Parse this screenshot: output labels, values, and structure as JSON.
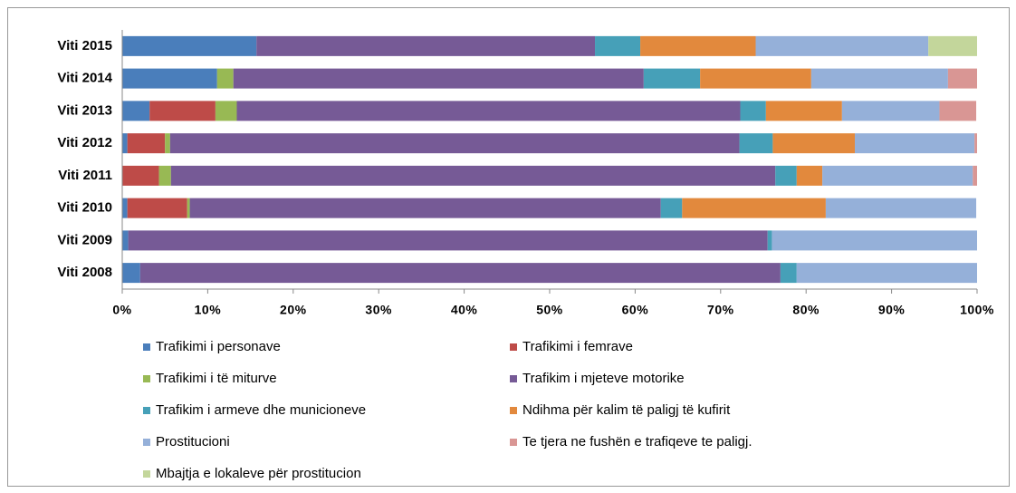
{
  "chart_data": {
    "type": "stacked_barh",
    "categories": [
      "Viti 2015",
      "Viti 2014",
      "Viti 2013",
      "Viti 2012",
      "Viti 2011",
      "Viti 2010",
      "Viti 2009",
      "Viti 2008"
    ],
    "series": [
      {
        "name": "Trafikimi i personave",
        "color": "#4a7ebb",
        "values": [
          15.7,
          11.1,
          3.2,
          0.6,
          0,
          0.6,
          0.7,
          2.1
        ]
      },
      {
        "name": "Trafikimi i femrave",
        "color": "#be4b48",
        "values": [
          0,
          0,
          7.7,
          4.4,
          4.3,
          7.0,
          0,
          0
        ]
      },
      {
        "name": "Trafikimi i të miturve",
        "color": "#98b954",
        "values": [
          0,
          1.9,
          2.5,
          0.6,
          1.4,
          0.3,
          0,
          0
        ]
      },
      {
        "name": "Trafikim i mjeteve motorike",
        "color": "#765a96",
        "values": [
          39.6,
          48.0,
          58.9,
          66.6,
          70.7,
          55.1,
          74.8,
          74.9
        ]
      },
      {
        "name": "Trafikim i armeve dhe municioneve",
        "color": "#46a0b8",
        "values": [
          5.3,
          6.6,
          3.0,
          3.9,
          2.5,
          2.5,
          0.5,
          1.9
        ]
      },
      {
        "name": "Ndihma për kalim  të paligj të kufirit",
        "color": "#e2893d",
        "values": [
          13.5,
          13.0,
          8.9,
          9.6,
          3.0,
          16.8,
          0,
          0
        ]
      },
      {
        "name": "Prostitucioni",
        "color": "#95b0d9",
        "values": [
          20.2,
          16.0,
          11.4,
          14.0,
          17.6,
          17.6,
          24.0,
          21.1
        ]
      },
      {
        "name": "Te tjera  ne fushën e trafiqeve te paligj.",
        "color": "#d99694",
        "values": [
          0,
          3.4,
          4.3,
          0.3,
          0.5,
          0,
          0,
          0
        ]
      },
      {
        "name": "Mbajtja e lokaleve për prostitucion",
        "color": "#c3d69b",
        "values": [
          5.7,
          0,
          0,
          0,
          0,
          0,
          0,
          0
        ]
      }
    ],
    "xlim": [
      0,
      100
    ],
    "xticks": [
      {
        "value": 0,
        "label": "0%"
      },
      {
        "value": 10,
        "label": "10%"
      },
      {
        "value": 20,
        "label": "20%"
      },
      {
        "value": 30,
        "label": "30%"
      },
      {
        "value": 40,
        "label": "40%"
      },
      {
        "value": 50,
        "label": "50%"
      },
      {
        "value": 60,
        "label": "60%"
      },
      {
        "value": 70,
        "label": "70%"
      },
      {
        "value": 80,
        "label": "80%"
      },
      {
        "value": 90,
        "label": "90%"
      },
      {
        "value": 100,
        "label": "100%"
      }
    ]
  }
}
